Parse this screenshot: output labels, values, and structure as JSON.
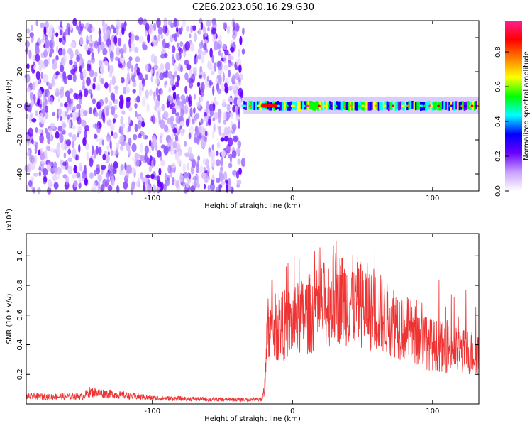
{
  "title": "C2E6.2023.050.16.29.G30",
  "chart_data": [
    {
      "type": "heatmap",
      "xlabel": "Height of straight line (km)",
      "ylabel": "Frequency (Hz)",
      "xlim": [
        -190,
        133
      ],
      "ylim": [
        -50,
        50
      ],
      "xticks": [
        -100,
        0,
        100
      ],
      "xtick_labels": [
        "-100",
        "0",
        "100"
      ],
      "yticks": [
        -40,
        -20,
        0,
        20,
        40
      ],
      "ytick_labels": [
        "-40",
        "-20",
        "0",
        "20",
        "40"
      ],
      "colorbar": {
        "label": "Normalized spectral amplitude",
        "range": [
          0,
          0.98
        ],
        "ticks": [
          0,
          0.2,
          0.4,
          0.6,
          0.8
        ],
        "tick_labels": [
          "0.0",
          "0.2",
          "0.4",
          "0.6",
          "0.8"
        ],
        "colors": [
          "#ffffff",
          "#c9a0ff",
          "#6a00ff",
          "#0000ff",
          "#00ffff",
          "#00ff00",
          "#ffff00",
          "#ff7f00",
          "#ff0000",
          "#ff1f8f"
        ]
      },
      "regions": [
        {
          "x_range": [
            -190,
            -35
          ],
          "y_range": [
            -50,
            50
          ],
          "amplitude_range": [
            0.0,
            0.15
          ],
          "description": "broadband noise"
        },
        {
          "x_range": [
            -35,
            133
          ],
          "center_frequency": 0,
          "bandwidth": 5,
          "amplitude_range": [
            0.3,
            0.95
          ],
          "description": "narrow band at 0 Hz"
        }
      ]
    },
    {
      "type": "line",
      "xlabel": "Height of straight line (km)",
      "ylabel": "SNR (10 * v/v)",
      "scale_label": "(x10",
      "scale_exp": "4",
      "scale_close": ")",
      "xlim": [
        -190,
        133
      ],
      "ylim": [
        0,
        1.15
      ],
      "xticks": [
        -100,
        0,
        100
      ],
      "xtick_labels": [
        "-100",
        "0",
        "100"
      ],
      "yticks": [
        0.2,
        0.4,
        0.6,
        0.8,
        1.0
      ],
      "ytick_labels": [
        "0.2",
        "0.4",
        "0.6",
        "0.8",
        "1.0"
      ],
      "color": "#ee3333",
      "series": [
        {
          "x": [
            -190,
            -150,
            -145,
            -100,
            -50,
            -22,
            -20,
            -18,
            -10,
            0,
            10,
            20,
            30,
            40,
            50,
            60,
            70,
            80,
            90,
            100,
            110,
            120,
            133
          ],
          "y": [
            0.05,
            0.05,
            0.08,
            0.04,
            0.03,
            0.03,
            0.1,
            0.5,
            0.52,
            0.55,
            0.6,
            0.65,
            0.72,
            0.7,
            0.68,
            0.62,
            0.58,
            0.52,
            0.45,
            0.4,
            0.38,
            0.35,
            0.35
          ]
        }
      ]
    }
  ]
}
